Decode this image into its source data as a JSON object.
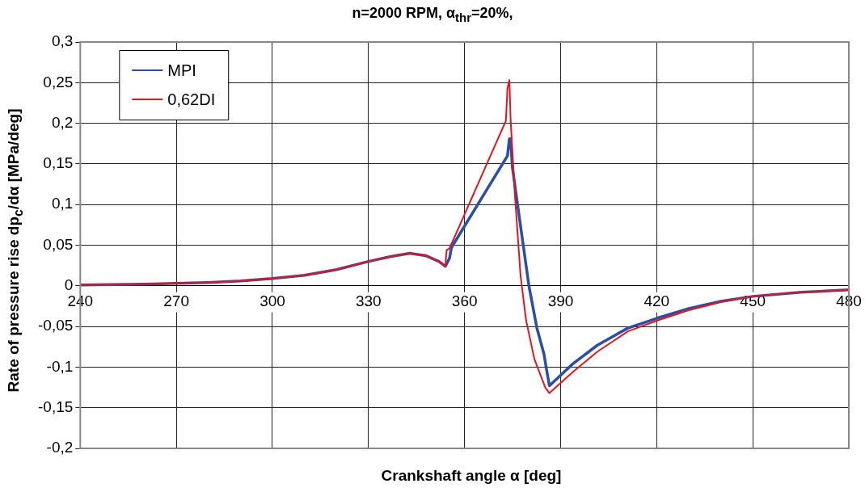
{
  "chart_data": {
    "type": "line",
    "title": "n=2000 RPM, α$_{thr}$=20%,",
    "xlabel": "Crankshaft angle α [deg]",
    "ylabel": "Rate of pressure rise dp$_{c}$/dα [MPa/deg]",
    "xlim": [
      240,
      480
    ],
    "xticks": [
      240,
      270,
      300,
      330,
      360,
      390,
      420,
      450,
      480
    ],
    "ylim": [
      -0.2,
      0.3
    ],
    "yticks": [
      {
        "value": -0.2,
        "label": "-0,2"
      },
      {
        "value": -0.15,
        "label": "-0,15"
      },
      {
        "value": -0.1,
        "label": "-0,1"
      },
      {
        "value": -0.05,
        "label": "-0,05"
      },
      {
        "value": 0,
        "label": "0"
      },
      {
        "value": 0.05,
        "label": "0,05"
      },
      {
        "value": 0.1,
        "label": "0,1"
      },
      {
        "value": 0.15,
        "label": "0,15"
      },
      {
        "value": 0.2,
        "label": "0,2"
      },
      {
        "value": 0.25,
        "label": "0,25"
      },
      {
        "value": 0.3,
        "label": "0,3"
      }
    ],
    "grid": true,
    "legend": "top left",
    "marker": "none",
    "line_style": "solid",
    "series": [
      {
        "name": "MPI",
        "color": "#2a4fa8",
        "x": [
          240,
          260,
          280,
          290,
          300,
          310,
          320,
          330,
          337,
          343,
          348,
          352,
          354,
          355.3,
          355.9,
          373.4,
          374,
          374.4,
          374.9,
          377.5,
          380.1,
          382.6,
          384.8,
          385.6,
          386.5,
          393.8,
          401.5,
          411,
          420,
          430,
          440,
          450,
          465,
          480
        ],
        "values": [
          0.001,
          0.002,
          0.004,
          0.006,
          0.009,
          0.013,
          0.02,
          0.03,
          0.036,
          0.04,
          0.037,
          0.03,
          0.024,
          0.034,
          0.047,
          0.16,
          0.181,
          0.181,
          0.147,
          0.073,
          0,
          -0.052,
          -0.084,
          -0.103,
          -0.123,
          -0.096,
          -0.073,
          -0.052,
          -0.04,
          -0.028,
          -0.019,
          -0.013,
          -0.008,
          -0.005
        ]
      },
      {
        "name": "0,62DI",
        "color": "#e8141c",
        "x": [
          240,
          260,
          280,
          290,
          300,
          310,
          320,
          330,
          337,
          343,
          348,
          352,
          354,
          354.4,
          355.3,
          372.9,
          373.4,
          374,
          374.4,
          375.7,
          377.5,
          379.2,
          381.8,
          385.2,
          386.5,
          393.8,
          401.5,
          411,
          420,
          430,
          440,
          450,
          465,
          480
        ],
        "values": [
          0.001,
          0.002,
          0.004,
          0.006,
          0.009,
          0.013,
          0.02,
          0.03,
          0.036,
          0.04,
          0.037,
          0.03,
          0.024,
          0.044,
          0.046,
          0.203,
          0.243,
          0.253,
          0.203,
          0.113,
          0.012,
          -0.042,
          -0.09,
          -0.125,
          -0.132,
          -0.106,
          -0.081,
          -0.056,
          -0.043,
          -0.03,
          -0.02,
          -0.013,
          -0.008,
          -0.005
        ]
      }
    ]
  }
}
